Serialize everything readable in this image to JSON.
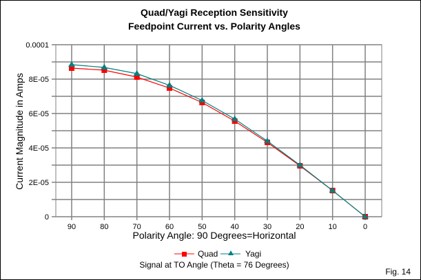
{
  "chart_data": {
    "type": "line",
    "title": [
      "Quad/Yagi Reception Sensitivity",
      "Feedpoint Current vs. Polarity Angles"
    ],
    "xlabel": "Polarity Angle: 90 Degrees=Horizontal",
    "ylabel": "Current Magnitude in Amps",
    "categories": [
      "90",
      "80",
      "70",
      "60",
      "50",
      "40",
      "30",
      "20",
      "10",
      "0"
    ],
    "ylim": [
      0,
      0.0001
    ],
    "yticks": [
      0,
      2e-05,
      4e-05,
      6e-05,
      8e-05,
      0.0001
    ],
    "ytick_labels": [
      "0",
      "2E-05",
      "4E-05",
      "6E-05",
      "8E-05",
      "0.0001"
    ],
    "grid": true,
    "legend_position": "bottom",
    "series": [
      {
        "name": "Quad",
        "color": "#ff0000",
        "marker": "square",
        "values": [
          8.64e-05,
          8.52e-05,
          8.12e-05,
          7.48e-05,
          6.64e-05,
          5.56e-05,
          4.32e-05,
          2.96e-05,
          1.52e-05,
          0
        ]
      },
      {
        "name": "Yagi",
        "color": "#008080",
        "marker": "triangle",
        "values": [
          8.84e-05,
          8.68e-05,
          8.32e-05,
          7.64e-05,
          6.76e-05,
          5.68e-05,
          4.4e-05,
          3e-05,
          1.52e-05,
          0
        ]
      }
    ],
    "subtitle_bottom": "Signal at TO Angle (Theta = 76 Degrees)",
    "figure_label": "Fig. 14"
  }
}
